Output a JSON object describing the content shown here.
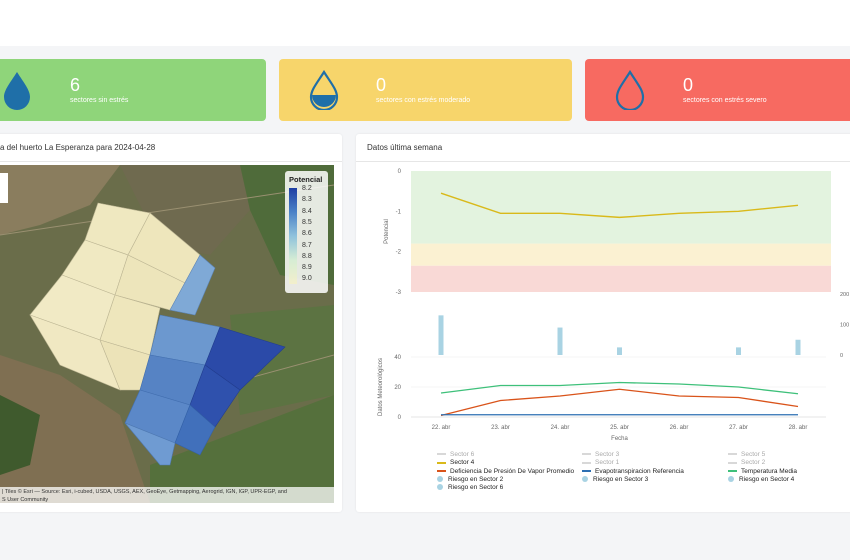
{
  "cards": [
    {
      "count": "6",
      "label": "sectores sin estrés",
      "color": "#8fd57a",
      "icon": "water-drop-full-icon"
    },
    {
      "count": "0",
      "label": "sectores con estrés moderado",
      "color": "#f7d56b",
      "icon": "water-drop-half-icon"
    },
    {
      "count": "0",
      "label": "sectores con estrés severo",
      "color": "#f76a61",
      "icon": "water-drop-empty-icon"
    }
  ],
  "map_panel": {
    "title": "a del huerto La Esperanza para 2024-04-28",
    "legend_title": "Potencial",
    "legend_values": [
      "8.2",
      "8.3",
      "8.4",
      "8.5",
      "8.6",
      "8.7",
      "8.8",
      "8.9",
      "9.0"
    ],
    "attribution_line1": "| Tiles © Esri — Source: Esri, i-cubed, USDA, USGS, AEX, GeoEye, Getmapping, Aerogrid, IGN, IGP, UPR-EGP, and",
    "attribution_line2": "S User Community"
  },
  "chart_panel": {
    "title": "Datos última semana",
    "legend_items": [
      {
        "label": "Sector 6",
        "color": "#d8d8d8",
        "kind": "line",
        "dim": true
      },
      {
        "label": "Sector 3",
        "color": "#d8d8d8",
        "kind": "line",
        "dim": true
      },
      {
        "label": "Sector 5",
        "color": "#d8d8d8",
        "kind": "line",
        "dim": true
      },
      {
        "label": "Sector 4",
        "color": "#d9b91a",
        "kind": "line",
        "dim": false
      },
      {
        "label": "Sector 1",
        "color": "#d8d8d8",
        "kind": "line",
        "dim": true
      },
      {
        "label": "Sector 2",
        "color": "#d8d8d8",
        "kind": "line",
        "dim": true
      },
      {
        "label": "Deficiencia De Presión De Vapor Promedio",
        "color": "#d9531a",
        "kind": "line",
        "dim": false
      },
      {
        "label": "Evapotranspiracion Referencia",
        "color": "#2d6fb2",
        "kind": "line",
        "dim": false
      },
      {
        "label": "Temperatura Media",
        "color": "#3ec07a",
        "kind": "line",
        "dim": false
      },
      {
        "label": "Riesgo en Sector 2",
        "color": "#a9d3e3",
        "kind": "dot",
        "dim": false
      },
      {
        "label": "Riesgo en Sector 3",
        "color": "#a9d3e3",
        "kind": "dot",
        "dim": false
      },
      {
        "label": "Riesgo en Sector 4",
        "color": "#a9d3e3",
        "kind": "dot",
        "dim": false
      },
      {
        "label": "Riesgo en Sector 6",
        "color": "#a9d3e3",
        "kind": "dot",
        "dim": false
      }
    ]
  },
  "chart_data": {
    "type": "line",
    "categories": [
      "22. abr",
      "23. abr",
      "24. abr",
      "25. abr",
      "26. abr",
      "27. abr",
      "28. abr"
    ],
    "xlabel": "Fecha",
    "potencial": {
      "ylabel": "Potencial",
      "ylim": [
        -3,
        0
      ],
      "yticks": [
        "0",
        "-1",
        "-2",
        "-3"
      ],
      "bands": [
        {
          "from": 0,
          "to": -1.8,
          "color": "#e3f3df"
        },
        {
          "from": -1.8,
          "to": -2.35,
          "color": "#fbf1d2"
        },
        {
          "from": -2.35,
          "to": -3,
          "color": "#f9d9d6"
        }
      ],
      "series": [
        {
          "name": "Sector 4",
          "color": "#d9b91a",
          "values": [
            -0.55,
            -1.05,
            -1.05,
            -1.15,
            -1.05,
            -1.0,
            -0.85
          ]
        }
      ]
    },
    "riesgo": {
      "ylim": [
        0,
        200
      ],
      "yticks": [
        "200",
        "100",
        "0"
      ],
      "bars": [
        {
          "x": 0,
          "value": 130
        },
        {
          "x": 2,
          "value": 90
        },
        {
          "x": 3,
          "value": 25
        },
        {
          "x": 5,
          "value": 25
        },
        {
          "x": 6,
          "value": 50
        }
      ]
    },
    "meteo": {
      "ylabel": "Datos Meteorológicos",
      "ylim": [
        0,
        40
      ],
      "yticks": [
        "40",
        "20",
        "0"
      ],
      "series": [
        {
          "name": "Temperatura Media",
          "color": "#3ec07a",
          "values": [
            16,
            21,
            21,
            23,
            22,
            20,
            15.5
          ]
        },
        {
          "name": "Deficiencia De Presión De Vapor Promedio",
          "color": "#d9531a",
          "values": [
            1,
            11,
            14,
            18.5,
            14,
            13,
            7
          ]
        },
        {
          "name": "Evapotranspiracion Referencia",
          "color": "#2d6fb2",
          "values": [
            1.5,
            1.5,
            1.5,
            1.5,
            1.5,
            1.5,
            1.5
          ]
        }
      ]
    }
  }
}
